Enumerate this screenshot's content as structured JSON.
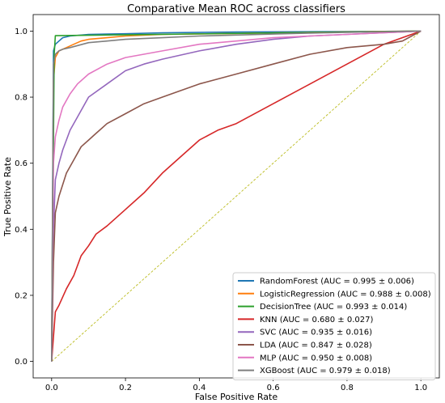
{
  "chart_data": {
    "type": "line",
    "title": "Comparative Mean ROC across classifiers",
    "xlabel": "False Positive Rate",
    "ylabel": "True Positive Rate",
    "xlim": [
      -0.05,
      1.05
    ],
    "ylim": [
      -0.05,
      1.05
    ],
    "xticks": [
      "0.0",
      "0.2",
      "0.4",
      "0.6",
      "0.8",
      "1.0"
    ],
    "yticks": [
      "0.0",
      "0.2",
      "0.4",
      "0.6",
      "0.8",
      "1.0"
    ],
    "legend_position": "lower-right",
    "diagonal": {
      "color": "#bcbd22",
      "style": "dashed",
      "x": [
        0,
        1
      ],
      "y": [
        0,
        1
      ]
    },
    "series": [
      {
        "name": "RandomForest (AUC = 0.995 ± 0.006)",
        "color": "#1f77b4",
        "x": [
          0,
          0.005,
          0.01,
          0.02,
          0.03,
          0.05,
          0.1,
          0.2,
          0.3,
          0.5,
          0.7,
          0.9,
          1.0
        ],
        "y": [
          0,
          0.94,
          0.96,
          0.97,
          0.98,
          0.985,
          0.99,
          0.992,
          0.995,
          0.997,
          0.998,
          0.999,
          1.0
        ]
      },
      {
        "name": "LogisticRegression (AUC = 0.988 ± 0.008)",
        "color": "#ff7f0e",
        "x": [
          0,
          0.005,
          0.01,
          0.02,
          0.04,
          0.06,
          0.08,
          0.1,
          0.15,
          0.2,
          0.3,
          0.5,
          0.7,
          0.9,
          1.0
        ],
        "y": [
          0,
          0.85,
          0.92,
          0.94,
          0.95,
          0.96,
          0.97,
          0.975,
          0.98,
          0.985,
          0.99,
          0.993,
          0.996,
          0.999,
          1.0
        ]
      },
      {
        "name": "DecisionTree (AUC = 0.993 ± 0.014)",
        "color": "#2ca02c",
        "x": [
          0,
          0.007,
          0.01,
          1.0
        ],
        "y": [
          0,
          0.93,
          0.986,
          1.0
        ]
      },
      {
        "name": "KNN (AUC = 0.680 ± 0.027)",
        "color": "#d62728",
        "x": [
          0,
          0.01,
          0.02,
          0.04,
          0.06,
          0.08,
          0.1,
          0.12,
          0.15,
          0.2,
          0.25,
          0.3,
          0.35,
          0.4,
          0.45,
          0.5,
          0.6,
          0.7,
          0.8,
          0.9,
          1.0
        ],
        "y": [
          0,
          0.15,
          0.17,
          0.22,
          0.26,
          0.32,
          0.35,
          0.385,
          0.41,
          0.46,
          0.51,
          0.57,
          0.62,
          0.67,
          0.7,
          0.72,
          0.78,
          0.84,
          0.9,
          0.96,
          1.0
        ]
      },
      {
        "name": "SVC (AUC = 0.935 ± 0.016)",
        "color": "#9467bd",
        "x": [
          0,
          0.005,
          0.01,
          0.02,
          0.03,
          0.05,
          0.07,
          0.1,
          0.15,
          0.2,
          0.25,
          0.3,
          0.4,
          0.5,
          0.6,
          0.7,
          0.8,
          0.9,
          1.0
        ],
        "y": [
          0,
          0.4,
          0.55,
          0.6,
          0.64,
          0.7,
          0.74,
          0.8,
          0.84,
          0.88,
          0.9,
          0.915,
          0.94,
          0.96,
          0.975,
          0.985,
          0.99,
          0.995,
          1.0
        ]
      },
      {
        "name": "LDA (AUC = 0.847 ± 0.028)",
        "color": "#8c564b",
        "x": [
          0,
          0.005,
          0.01,
          0.02,
          0.04,
          0.06,
          0.08,
          0.1,
          0.12,
          0.15,
          0.2,
          0.25,
          0.3,
          0.35,
          0.4,
          0.5,
          0.6,
          0.7,
          0.8,
          0.9,
          0.95,
          1.0
        ],
        "y": [
          0,
          0.3,
          0.45,
          0.5,
          0.57,
          0.61,
          0.65,
          0.67,
          0.69,
          0.72,
          0.75,
          0.78,
          0.8,
          0.82,
          0.84,
          0.87,
          0.9,
          0.93,
          0.95,
          0.96,
          0.97,
          1.0
        ]
      },
      {
        "name": "MLP (AUC = 0.950 ± 0.008)",
        "color": "#e377c2",
        "x": [
          0,
          0.005,
          0.01,
          0.02,
          0.03,
          0.05,
          0.07,
          0.1,
          0.15,
          0.2,
          0.25,
          0.3,
          0.4,
          0.5,
          0.6,
          0.7,
          0.8,
          0.9,
          1.0
        ],
        "y": [
          0,
          0.6,
          0.68,
          0.73,
          0.77,
          0.81,
          0.84,
          0.87,
          0.9,
          0.92,
          0.93,
          0.94,
          0.96,
          0.97,
          0.98,
          0.985,
          0.99,
          0.995,
          1.0
        ]
      },
      {
        "name": "XGBoost (AUC = 0.979 ± 0.018)",
        "color": "#7f7f7f",
        "x": [
          0,
          0.005,
          0.01,
          0.02,
          0.03,
          0.05,
          0.1,
          0.15,
          0.2,
          0.3,
          0.4,
          0.5,
          0.6,
          0.7,
          0.8,
          0.9,
          1.0
        ],
        "y": [
          0,
          0.9,
          0.93,
          0.94,
          0.945,
          0.95,
          0.965,
          0.97,
          0.975,
          0.98,
          0.985,
          0.988,
          0.991,
          0.994,
          0.996,
          0.998,
          1.0
        ]
      }
    ]
  }
}
